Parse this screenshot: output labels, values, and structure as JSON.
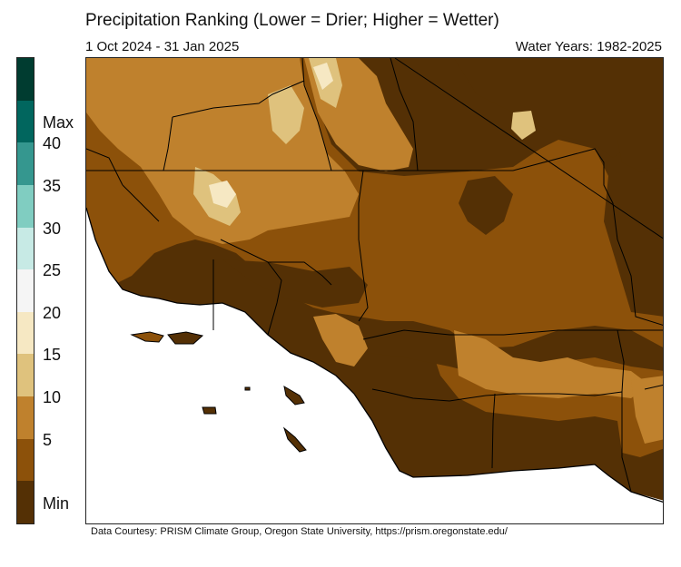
{
  "header": {
    "title": "Precipitation Ranking (Lower = Drier; Higher = Wetter)",
    "period": "1 Oct 2024 - 31 Jan 2025",
    "water_years": "Water Years: 1982-2025"
  },
  "legend": {
    "bins": [
      {
        "label": "Min",
        "color": "#543005"
      },
      {
        "label": "5",
        "color": "#8c510a"
      },
      {
        "label": "10",
        "color": "#bf812d"
      },
      {
        "label": "15",
        "color": "#dfc27d"
      },
      {
        "label": "20",
        "color": "#f6e8c3"
      },
      {
        "label": "25",
        "color": "#f5f5f5"
      },
      {
        "label": "30",
        "color": "#c7eae5"
      },
      {
        "label": "35",
        "color": "#80cdc1"
      },
      {
        "label": "40",
        "color": "#35978f"
      },
      {
        "label": "Max",
        "color": "#01665e"
      },
      {
        "label": "",
        "color": "#003c30"
      }
    ]
  },
  "map": {
    "region": "Southern California",
    "colors": {
      "rank_min": "#543005",
      "rank_5": "#8c510a",
      "rank_10": "#bf812d",
      "rank_15": "#dfc27d",
      "rank_20": "#f6e8c3",
      "ocean": "#ffffff",
      "boundary": "#000000"
    }
  },
  "footer": {
    "credit": "Data Courtesy: PRISM Climate Group, Oregon State University, https://prism.oregonstate.edu/"
  }
}
